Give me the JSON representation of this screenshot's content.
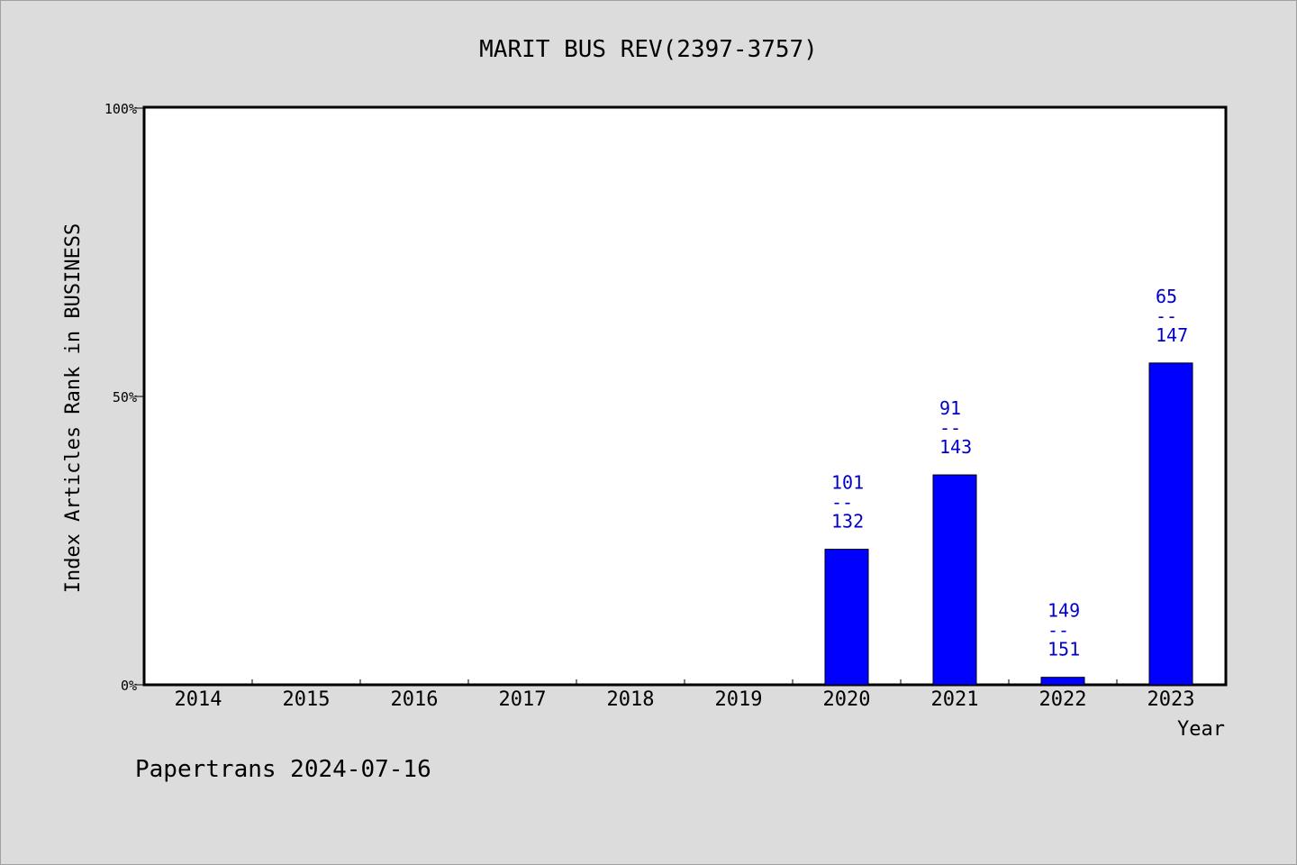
{
  "chart_data": {
    "type": "bar",
    "title": "MARIT BUS REV(2397-3757)",
    "xlabel": "Year",
    "ylabel": "Index Articles Rank in BUSINESS",
    "categories": [
      "2014",
      "2015",
      "2016",
      "2017",
      "2018",
      "2019",
      "2020",
      "2021",
      "2022",
      "2023"
    ],
    "values": [
      null,
      null,
      null,
      null,
      null,
      null,
      23.5,
      36.4,
      1.3,
      55.8
    ],
    "labels": [
      null,
      null,
      null,
      null,
      null,
      null,
      {
        "rank": "101",
        "sep": "--",
        "total": "132"
      },
      {
        "rank": "91",
        "sep": "--",
        "total": "143"
      },
      {
        "rank": "149",
        "sep": "--",
        "total": "151"
      },
      {
        "rank": "65",
        "sep": "--",
        "total": "147"
      }
    ],
    "y_ticks": [
      "0%",
      "50%",
      "100%"
    ],
    "ylim": [
      0,
      100
    ],
    "colors": {
      "bar": "#0000ff",
      "label": "#0000c8",
      "background": "#dcdcdc",
      "plot": "#ffffff"
    }
  },
  "footer": "Papertrans 2024-07-16"
}
